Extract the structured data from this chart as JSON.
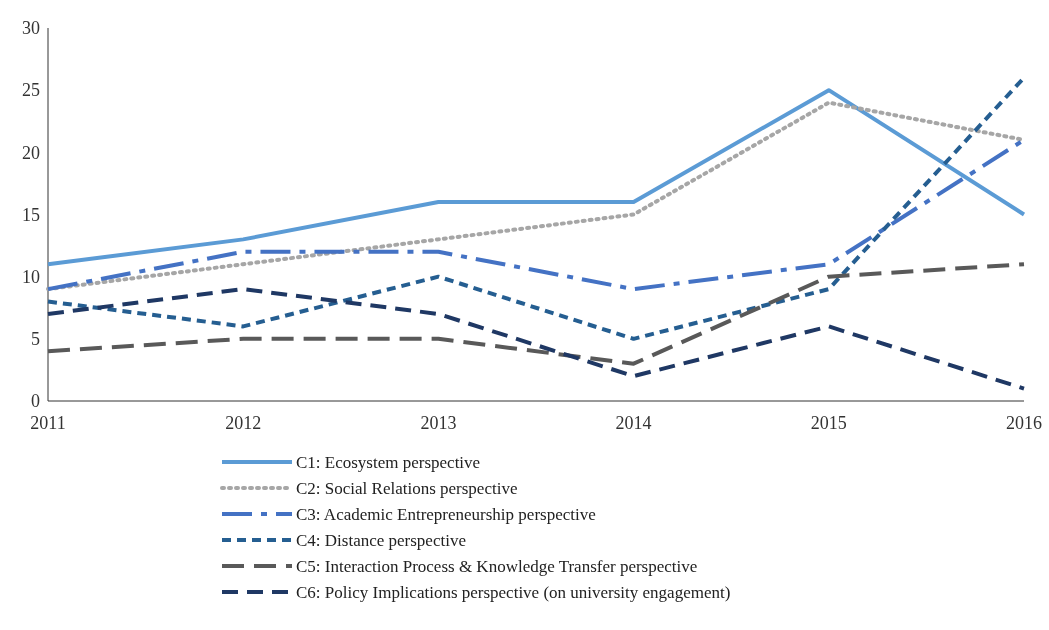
{
  "chart_data": {
    "type": "line",
    "x": [
      2011,
      2012,
      2013,
      2014,
      2015,
      2016
    ],
    "xlim": [
      2011,
      2016
    ],
    "xticks": [
      2011,
      2012,
      2013,
      2014,
      2015,
      2016
    ],
    "ylim": [
      0,
      30
    ],
    "yticks": [
      0,
      5,
      10,
      15,
      20,
      25,
      30
    ],
    "grid": false,
    "legend": "bottom",
    "marker": "none",
    "series": [
      {
        "name": "C1: Ecosystem perspective",
        "color": "#5b9bd5",
        "line_style": "solid",
        "values": [
          11,
          13,
          16,
          16,
          25,
          15
        ]
      },
      {
        "name": "C2: Social Relations perspective",
        "color": "#a6a6a6",
        "line_style": "dotted",
        "values": [
          9,
          11,
          13,
          15,
          24,
          21
        ]
      },
      {
        "name": "C3: Academic Entrepreneurship perspective",
        "color": "#4472c4",
        "line_style": "dashed",
        "values": [
          9,
          12,
          12,
          9,
          11,
          21
        ]
      },
      {
        "name": "C4: Distance perspective",
        "color": "#255e91",
        "line_style": "dashed",
        "values": [
          8,
          6,
          10,
          5,
          9,
          26
        ]
      },
      {
        "name": "C5: Interaction Process & Knowledge Transfer perspective",
        "color": "#595959",
        "line_style": "dashed",
        "values": [
          4,
          5,
          5,
          3,
          10,
          11
        ]
      },
      {
        "name": "C6: Policy Implications perspective (on university engagement)",
        "color": "#1f3864",
        "line_style": "dashed",
        "values": [
          7,
          9,
          7,
          2,
          6,
          1
        ]
      }
    ]
  }
}
